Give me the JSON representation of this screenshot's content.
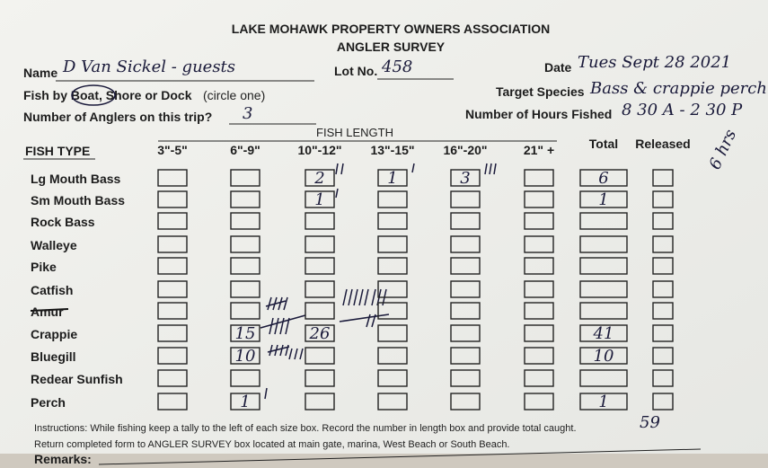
{
  "header": {
    "title": "LAKE MOHAWK PROPERTY OWNERS ASSOCIATION",
    "subtitle": "ANGLER SURVEY"
  },
  "fields": {
    "name": {
      "label": "Name",
      "value": "D Van Sickel - guests"
    },
    "lot": {
      "label": "Lot No.",
      "value": "458"
    },
    "date": {
      "label": "Date",
      "value": "Tues Sept 28 2021"
    },
    "fish_by": {
      "label": "Fish by Boat, Shore or Dock",
      "note": "(circle one)"
    },
    "target": {
      "label": "Target Species",
      "value": "Bass & crappie perch"
    },
    "anglers": {
      "label": "Number of Anglers on this trip?",
      "value": "3"
    },
    "hours": {
      "label": "Number of Hours Fished",
      "value": "8 30 A - 2 30 P"
    },
    "margin_note": "6 hrs"
  },
  "table": {
    "group_header": "FISH LENGTH",
    "columns": [
      "FISH TYPE",
      "3\"-5\"",
      "6\"-9\"",
      "10\"-12\"",
      "13\"-15\"",
      "16\"-20\"",
      "21\" +",
      "Total",
      "Released"
    ],
    "rows": [
      {
        "name": "Lg Mouth Bass",
        "cells": [
          null,
          null,
          "2",
          "1",
          "3",
          null,
          "6",
          null
        ]
      },
      {
        "name": "Sm Mouth Bass",
        "cells": [
          null,
          null,
          "1",
          null,
          null,
          null,
          "1",
          null
        ]
      },
      {
        "name": "Rock Bass",
        "cells": [
          null,
          null,
          null,
          null,
          null,
          null,
          null,
          null
        ]
      },
      {
        "name": "Walleye",
        "cells": [
          null,
          null,
          null,
          null,
          null,
          null,
          null,
          null
        ]
      },
      {
        "name": "Pike",
        "cells": [
          null,
          null,
          null,
          null,
          null,
          null,
          null,
          null
        ]
      },
      {
        "name": "Catfish",
        "cells": [
          null,
          null,
          null,
          null,
          null,
          null,
          null,
          null
        ]
      },
      {
        "name": "Amur",
        "cells": [
          null,
          null,
          null,
          null,
          null,
          null,
          null,
          null
        ]
      },
      {
        "name": "Crappie",
        "cells": [
          null,
          "15",
          "26",
          null,
          null,
          null,
          "41",
          null
        ]
      },
      {
        "name": "Bluegill",
        "cells": [
          null,
          "10",
          null,
          null,
          null,
          null,
          "10",
          null
        ]
      },
      {
        "name": "Redear Sunfish",
        "cells": [
          null,
          null,
          null,
          null,
          null,
          null,
          null,
          null
        ]
      },
      {
        "name": "Perch",
        "cells": [
          null,
          "1",
          null,
          null,
          null,
          null,
          "1",
          null
        ]
      }
    ],
    "grand_total": "59"
  },
  "instructions": [
    "Instructions: While fishing keep a tally to the left of each size box. Record the number in length box and provide total caught.",
    "Return completed form to ANGLER SURVEY box located at main gate, marina, West Beach or South Beach."
  ],
  "remarks_label": "Remarks:"
}
